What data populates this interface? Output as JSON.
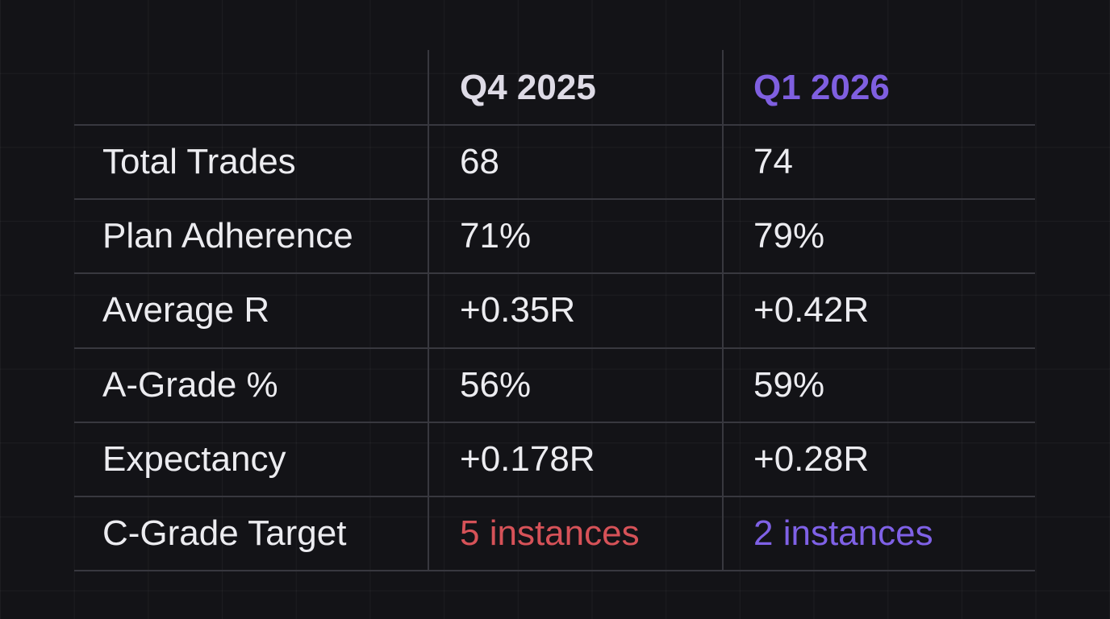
{
  "table": {
    "columns": [
      "Q4 2025",
      "Q1 2026"
    ],
    "rows": [
      [
        "Total Trades",
        "68",
        "74"
      ],
      [
        "Plan Adherence",
        "71%",
        "79%"
      ],
      [
        "Average R",
        "+0.35R",
        "+0.42R"
      ],
      [
        "A-Grade %",
        "56%",
        "59%"
      ],
      [
        "Expectancy",
        "+0.178R",
        "+0.28R"
      ],
      [
        "C-Grade Target",
        "5 instances",
        "2 instances"
      ]
    ]
  }
}
